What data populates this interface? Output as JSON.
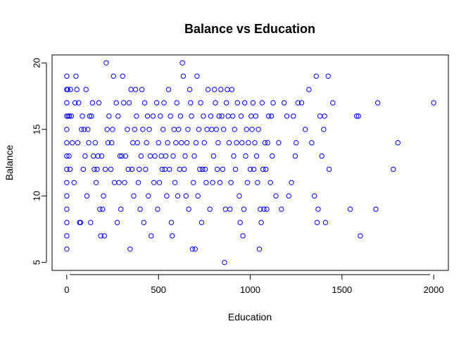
{
  "chart_data": {
    "type": "scatter",
    "title": "Balance vs Education",
    "xlabel": "Education",
    "ylabel": "Balance",
    "xlim": [
      -80,
      2080
    ],
    "ylim": [
      4.4,
      20.6
    ],
    "xticks": [
      0,
      500,
      1000,
      1500,
      2000
    ],
    "yticks": [
      5,
      10,
      15,
      20
    ],
    "grid": false,
    "marker": "open-circle",
    "point_color": "#0000ff",
    "points": [
      [
        0,
        19
      ],
      [
        0,
        18
      ],
      [
        0,
        17
      ],
      [
        0,
        16
      ],
      [
        0,
        15
      ],
      [
        0,
        14
      ],
      [
        0,
        13
      ],
      [
        0,
        12
      ],
      [
        0,
        11
      ],
      [
        0,
        10
      ],
      [
        0,
        9
      ],
      [
        0,
        8
      ],
      [
        0,
        7
      ],
      [
        0,
        6
      ],
      [
        5,
        18
      ],
      [
        8,
        16
      ],
      [
        12,
        13
      ],
      [
        15,
        16
      ],
      [
        18,
        12
      ],
      [
        20,
        18
      ],
      [
        25,
        16
      ],
      [
        30,
        14
      ],
      [
        40,
        11
      ],
      [
        45,
        17
      ],
      [
        50,
        19
      ],
      [
        55,
        18
      ],
      [
        60,
        14
      ],
      [
        65,
        17
      ],
      [
        70,
        8
      ],
      [
        75,
        8
      ],
      [
        80,
        15
      ],
      [
        85,
        16
      ],
      [
        90,
        12
      ],
      [
        95,
        15
      ],
      [
        100,
        13
      ],
      [
        105,
        18
      ],
      [
        110,
        10
      ],
      [
        115,
        15
      ],
      [
        120,
        14
      ],
      [
        125,
        16
      ],
      [
        130,
        8
      ],
      [
        135,
        16
      ],
      [
        140,
        17
      ],
      [
        145,
        13
      ],
      [
        150,
        12
      ],
      [
        155,
        14
      ],
      [
        160,
        11
      ],
      [
        165,
        12
      ],
      [
        170,
        13
      ],
      [
        175,
        17
      ],
      [
        180,
        9
      ],
      [
        185,
        7
      ],
      [
        190,
        13
      ],
      [
        195,
        9
      ],
      [
        200,
        10
      ],
      [
        205,
        7
      ],
      [
        210,
        12
      ],
      [
        215,
        20
      ],
      [
        220,
        15
      ],
      [
        225,
        14
      ],
      [
        230,
        16
      ],
      [
        240,
        12
      ],
      [
        245,
        14
      ],
      [
        250,
        15
      ],
      [
        255,
        19
      ],
      [
        260,
        11
      ],
      [
        270,
        17
      ],
      [
        275,
        8
      ],
      [
        280,
        16
      ],
      [
        285,
        11
      ],
      [
        290,
        13
      ],
      [
        295,
        9
      ],
      [
        300,
        13
      ],
      [
        305,
        19
      ],
      [
        310,
        17
      ],
      [
        315,
        11
      ],
      [
        320,
        13
      ],
      [
        330,
        15
      ],
      [
        335,
        12
      ],
      [
        340,
        17
      ],
      [
        345,
        6
      ],
      [
        350,
        18
      ],
      [
        355,
        12
      ],
      [
        360,
        14
      ],
      [
        365,
        10
      ],
      [
        370,
        15
      ],
      [
        375,
        18
      ],
      [
        380,
        16
      ],
      [
        385,
        14
      ],
      [
        390,
        11
      ],
      [
        395,
        12
      ],
      [
        400,
        9
      ],
      [
        405,
        13
      ],
      [
        410,
        18
      ],
      [
        415,
        15
      ],
      [
        420,
        8
      ],
      [
        425,
        17
      ],
      [
        430,
        12
      ],
      [
        435,
        14
      ],
      [
        440,
        16
      ],
      [
        445,
        10
      ],
      [
        450,
        15
      ],
      [
        455,
        13
      ],
      [
        460,
        7
      ],
      [
        470,
        16
      ],
      [
        475,
        11
      ],
      [
        480,
        13
      ],
      [
        490,
        17
      ],
      [
        495,
        9
      ],
      [
        500,
        14
      ],
      [
        505,
        11
      ],
      [
        510,
        16
      ],
      [
        515,
        13
      ],
      [
        520,
        12
      ],
      [
        525,
        15
      ],
      [
        530,
        17
      ],
      [
        535,
        12
      ],
      [
        540,
        13
      ],
      [
        545,
        10
      ],
      [
        550,
        14
      ],
      [
        555,
        18
      ],
      [
        560,
        12
      ],
      [
        565,
        16
      ],
      [
        570,
        8
      ],
      [
        575,
        7
      ],
      [
        580,
        13
      ],
      [
        585,
        15
      ],
      [
        590,
        11
      ],
      [
        595,
        14
      ],
      [
        600,
        17
      ],
      [
        605,
        10
      ],
      [
        610,
        15
      ],
      [
        615,
        12
      ],
      [
        620,
        16
      ],
      [
        625,
        14
      ],
      [
        630,
        20
      ],
      [
        635,
        19
      ],
      [
        640,
        12
      ],
      [
        645,
        13
      ],
      [
        650,
        10
      ],
      [
        655,
        14
      ],
      [
        660,
        15
      ],
      [
        665,
        9
      ],
      [
        670,
        18
      ],
      [
        675,
        17
      ],
      [
        680,
        16
      ],
      [
        685,
        6
      ],
      [
        690,
        11
      ],
      [
        695,
        13
      ],
      [
        700,
        6
      ],
      [
        705,
        14
      ],
      [
        710,
        19
      ],
      [
        715,
        10
      ],
      [
        720,
        15
      ],
      [
        725,
        12
      ],
      [
        730,
        17
      ],
      [
        735,
        8
      ],
      [
        740,
        12
      ],
      [
        745,
        16
      ],
      [
        750,
        14
      ],
      [
        755,
        12
      ],
      [
        760,
        11
      ],
      [
        765,
        15
      ],
      [
        770,
        18
      ],
      [
        780,
        9
      ],
      [
        785,
        16
      ],
      [
        790,
        15
      ],
      [
        795,
        11
      ],
      [
        800,
        13
      ],
      [
        805,
        18
      ],
      [
        810,
        17
      ],
      [
        815,
        15
      ],
      [
        820,
        12
      ],
      [
        825,
        14
      ],
      [
        830,
        16
      ],
      [
        835,
        11
      ],
      [
        840,
        18
      ],
      [
        845,
        16
      ],
      [
        850,
        12
      ],
      [
        855,
        15
      ],
      [
        860,
        5
      ],
      [
        865,
        9
      ],
      [
        870,
        17
      ],
      [
        875,
        18
      ],
      [
        880,
        16
      ],
      [
        885,
        14
      ],
      [
        890,
        9
      ],
      [
        895,
        11
      ],
      [
        900,
        18
      ],
      [
        905,
        16
      ],
      [
        910,
        13
      ],
      [
        915,
        15
      ],
      [
        920,
        12
      ],
      [
        925,
        14
      ],
      [
        930,
        17
      ],
      [
        940,
        10
      ],
      [
        945,
        8
      ],
      [
        950,
        16
      ],
      [
        955,
        14
      ],
      [
        960,
        7
      ],
      [
        965,
        9
      ],
      [
        970,
        17
      ],
      [
        975,
        13
      ],
      [
        980,
        15
      ],
      [
        985,
        11
      ],
      [
        990,
        14
      ],
      [
        1000,
        12
      ],
      [
        1005,
        16
      ],
      [
        1010,
        15
      ],
      [
        1015,
        17
      ],
      [
        1020,
        12
      ],
      [
        1025,
        14
      ],
      [
        1030,
        16
      ],
      [
        1035,
        13
      ],
      [
        1040,
        11
      ],
      [
        1045,
        15
      ],
      [
        1050,
        6
      ],
      [
        1055,
        9
      ],
      [
        1060,
        8
      ],
      [
        1065,
        17
      ],
      [
        1070,
        12
      ],
      [
        1075,
        9
      ],
      [
        1080,
        14
      ],
      [
        1085,
        12
      ],
      [
        1090,
        9
      ],
      [
        1095,
        14
      ],
      [
        1100,
        16
      ],
      [
        1110,
        11
      ],
      [
        1115,
        16
      ],
      [
        1120,
        13
      ],
      [
        1125,
        17
      ],
      [
        1140,
        10
      ],
      [
        1155,
        14
      ],
      [
        1170,
        9
      ],
      [
        1185,
        17
      ],
      [
        1200,
        16
      ],
      [
        1210,
        10
      ],
      [
        1225,
        11
      ],
      [
        1235,
        16
      ],
      [
        1245,
        13
      ],
      [
        1250,
        14
      ],
      [
        1260,
        17
      ],
      [
        1280,
        17
      ],
      [
        1300,
        15
      ],
      [
        1320,
        18
      ],
      [
        1335,
        14
      ],
      [
        1350,
        10
      ],
      [
        1360,
        19
      ],
      [
        1365,
        8
      ],
      [
        1370,
        9
      ],
      [
        1380,
        16
      ],
      [
        1390,
        13
      ],
      [
        1400,
        15
      ],
      [
        1405,
        16
      ],
      [
        1410,
        8
      ],
      [
        1425,
        19
      ],
      [
        1430,
        12
      ],
      [
        1450,
        17
      ],
      [
        1545,
        9
      ],
      [
        1580,
        16
      ],
      [
        1590,
        16
      ],
      [
        1600,
        7
      ],
      [
        1685,
        9
      ],
      [
        1695,
        17
      ],
      [
        1780,
        12
      ],
      [
        1805,
        14
      ],
      [
        2000,
        17
      ]
    ]
  }
}
